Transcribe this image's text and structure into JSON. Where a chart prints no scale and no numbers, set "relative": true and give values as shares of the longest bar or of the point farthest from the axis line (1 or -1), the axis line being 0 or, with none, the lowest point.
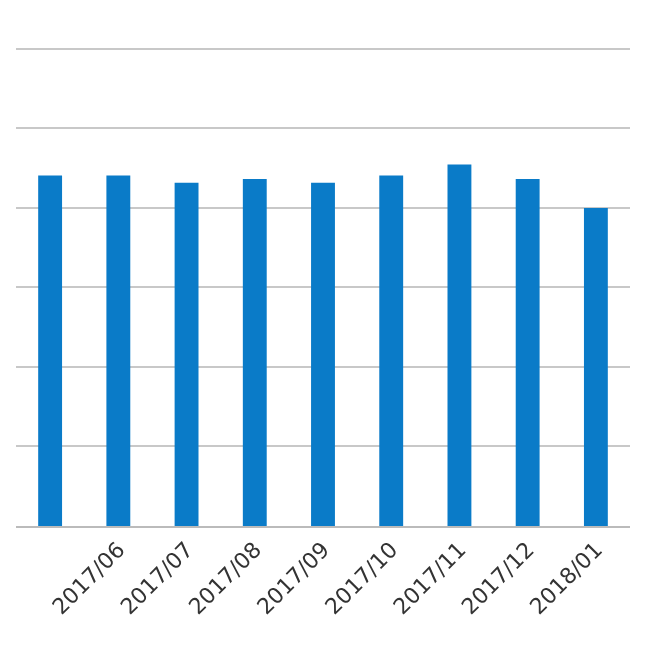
{
  "chart_data": {
    "type": "bar",
    "relative": true,
    "grid": "y",
    "color": "#0a7bc8",
    "categories": [
      null,
      "2017/06",
      "2017/07",
      "2017/08",
      "2017/09",
      "2017/10",
      "2017/11",
      "2017/12",
      "2018/01"
    ],
    "values": [
      0.97,
      0.97,
      0.95,
      0.96,
      0.95,
      0.97,
      1,
      0.96,
      0.88
    ]
  }
}
